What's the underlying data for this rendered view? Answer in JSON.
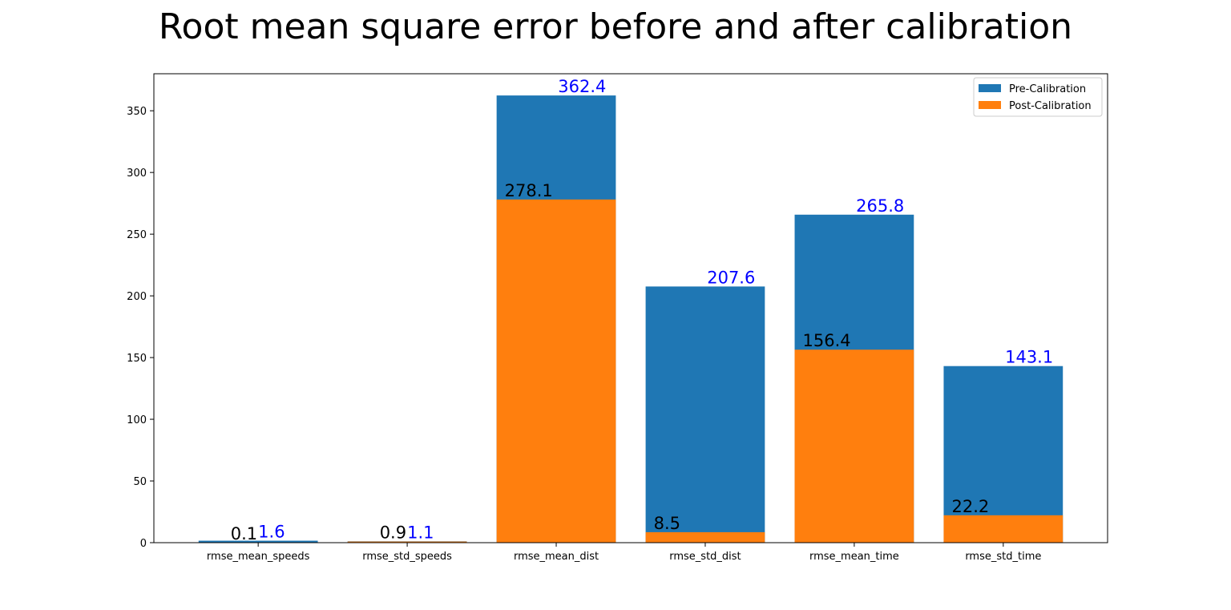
{
  "chart_data": {
    "type": "bar",
    "stacking": "overlay",
    "title": "Root mean square error before and after calibration",
    "xlabel": "",
    "ylabel": "",
    "categories": [
      "rmse_mean_speeds",
      "rmse_std_speeds",
      "rmse_mean_dist",
      "rmse_std_dist",
      "rmse_mean_time",
      "rmse_std_time"
    ],
    "series": [
      {
        "name": "Pre-Calibration",
        "color": "#1f77b4",
        "label_color": "#0000ff",
        "values": [
          1.6,
          1.1,
          362.4,
          207.6,
          265.8,
          143.1
        ]
      },
      {
        "name": "Post-Calibration",
        "color": "#ff7f0e",
        "label_color": "#000000",
        "values": [
          0.1,
          0.9,
          278.1,
          8.5,
          156.4,
          22.2
        ]
      }
    ],
    "ylim": [
      0,
      380
    ],
    "yticks": [
      0,
      50,
      100,
      150,
      200,
      250,
      300,
      350
    ],
    "grid": false,
    "legend_position": "top-right"
  }
}
